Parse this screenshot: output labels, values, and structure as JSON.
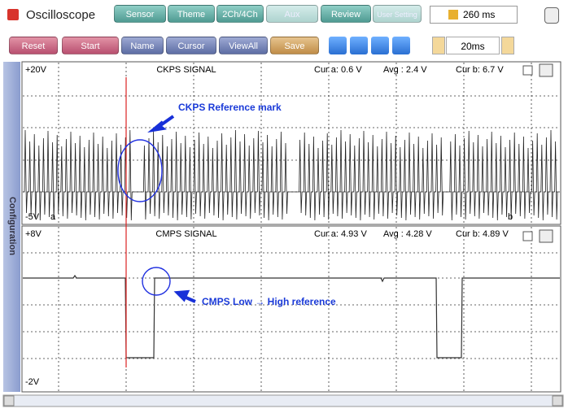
{
  "header": {
    "title": "Oscilloscope",
    "tabs": [
      "Sensor",
      "Theme",
      "2Ch/4Ch",
      "Aux",
      "Review",
      "User Setting"
    ],
    "time": "260 ms"
  },
  "toolbar": {
    "buttons": [
      "Reset",
      "Start",
      "Name",
      "Cursor",
      "ViewAll",
      "Save"
    ],
    "timebase": "20ms"
  },
  "sidebar": {
    "label": "Configuration"
  },
  "channels": [
    {
      "title": "CKPS SIGNAL",
      "max": "+20V",
      "min": "-5V",
      "cur_a": "Cur a: 0.6 V",
      "avg": "Avg : 2.4 V",
      "cur_b": "Cur b: 6.7 V",
      "cursor_a": "a",
      "cursor_b": "b",
      "annotation": "CKPS Reference mark"
    },
    {
      "title": "CMPS SIGNAL",
      "max": "+8V",
      "min": "-2V",
      "cur_a": "Cur a: 4.93 V",
      "avg": "Avg : 4.28 V",
      "cur_b": "Cur b: 4.89 V",
      "annotation": "CMPS Low → High reference"
    }
  ]
}
